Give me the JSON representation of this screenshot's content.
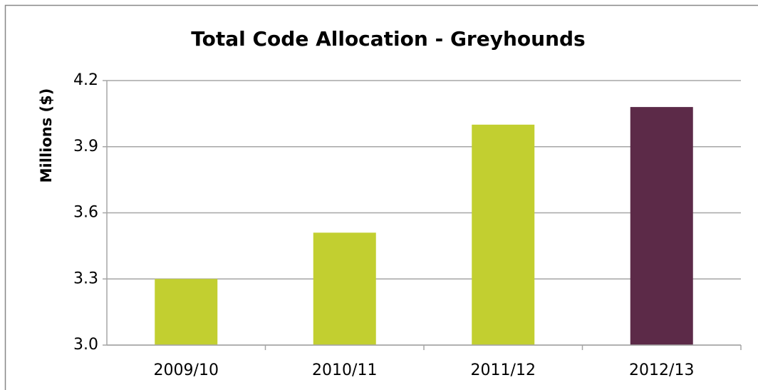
{
  "chart_data": {
    "type": "bar",
    "title": "Total Code Allocation - Greyhounds",
    "y_label": "Millions ($)",
    "categories": [
      "2009/10",
      "2010/11",
      "2011/12",
      "2012/13"
    ],
    "values": [
      3.3,
      3.51,
      4.0,
      4.08
    ],
    "colors": [
      "#c2cf30",
      "#c2cf30",
      "#c2cf30",
      "#5c2a48"
    ],
    "ylim": [
      3.0,
      4.2
    ],
    "yticks": [
      {
        "value": 3.0,
        "label": "3.0"
      },
      3.3,
      3.6,
      3.9,
      4.2
    ],
    "grid": true
  }
}
